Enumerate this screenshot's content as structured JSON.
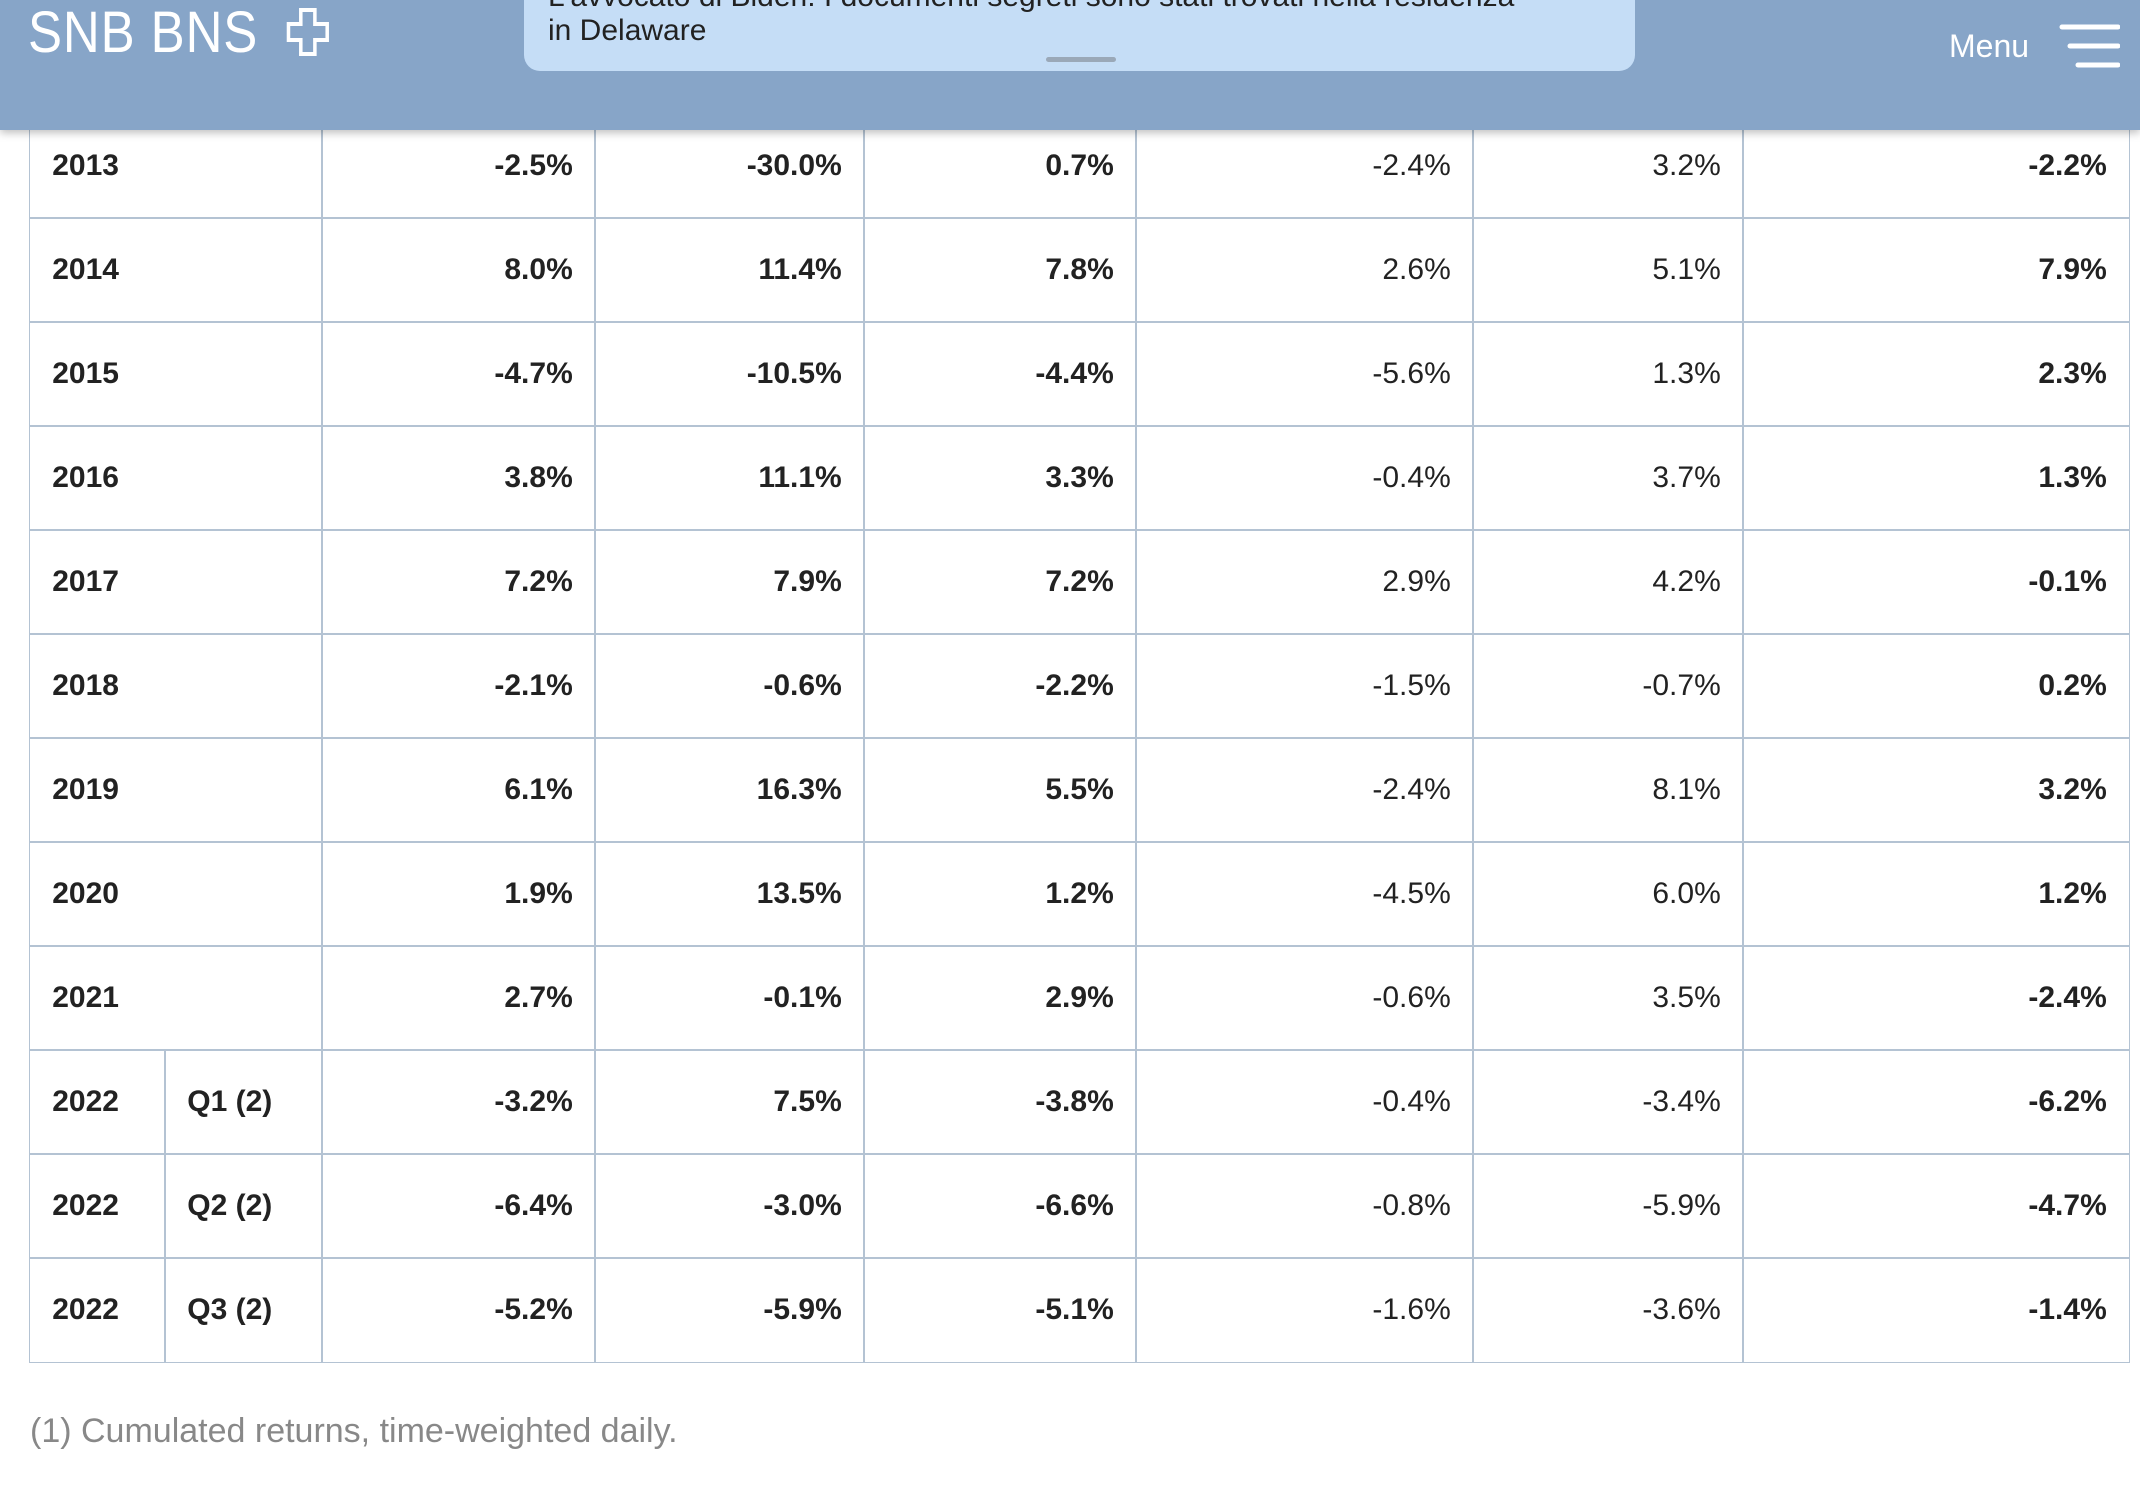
{
  "header": {
    "logo": "SNB BNS",
    "menu": "Menu"
  },
  "notification": {
    "lines": [
      "L'avvocato di Biden: I documenti segreti sono stati trovati nella residenza",
      "in Delaware"
    ]
  },
  "table": {
    "rows": [
      {
        "year": "2013",
        "values": [
          "-2.5%",
          "-30.0%",
          "0.7%",
          "-2.4%",
          "3.2%",
          "-2.2%"
        ]
      },
      {
        "year": "2014",
        "values": [
          "8.0%",
          "11.4%",
          "7.8%",
          "2.6%",
          "5.1%",
          "7.9%"
        ]
      },
      {
        "year": "2015",
        "values": [
          "-4.7%",
          "-10.5%",
          "-4.4%",
          "-5.6%",
          "1.3%",
          "2.3%"
        ]
      },
      {
        "year": "2016",
        "values": [
          "3.8%",
          "11.1%",
          "3.3%",
          "-0.4%",
          "3.7%",
          "1.3%"
        ]
      },
      {
        "year": "2017",
        "values": [
          "7.2%",
          "7.9%",
          "7.2%",
          "2.9%",
          "4.2%",
          "-0.1%"
        ]
      },
      {
        "year": "2018",
        "values": [
          "-2.1%",
          "-0.6%",
          "-2.2%",
          "-1.5%",
          "-0.7%",
          "0.2%"
        ]
      },
      {
        "year": "2019",
        "values": [
          "6.1%",
          "16.3%",
          "5.5%",
          "-2.4%",
          "8.1%",
          "3.2%"
        ]
      },
      {
        "year": "2020",
        "values": [
          "1.9%",
          "13.5%",
          "1.2%",
          "-4.5%",
          "6.0%",
          "1.2%"
        ]
      },
      {
        "year": "2021",
        "values": [
          "2.7%",
          "-0.1%",
          "2.9%",
          "-0.6%",
          "3.5%",
          "-2.4%"
        ]
      },
      {
        "year": "2022",
        "quarter": "Q1 (2)",
        "values": [
          "-3.2%",
          "7.5%",
          "-3.8%",
          "-0.4%",
          "-3.4%",
          "-6.2%"
        ]
      },
      {
        "year": "2022",
        "quarter": "Q2 (2)",
        "values": [
          "-6.4%",
          "-3.0%",
          "-6.6%",
          "-0.8%",
          "-5.9%",
          "-4.7%"
        ]
      },
      {
        "year": "2022",
        "quarter": "Q3 (2)",
        "values": [
          "-5.2%",
          "-5.9%",
          "-5.1%",
          "-1.6%",
          "-3.6%",
          "-1.4%"
        ]
      }
    ]
  },
  "footnote": "(1) Cumulated returns, time-weighted daily."
}
